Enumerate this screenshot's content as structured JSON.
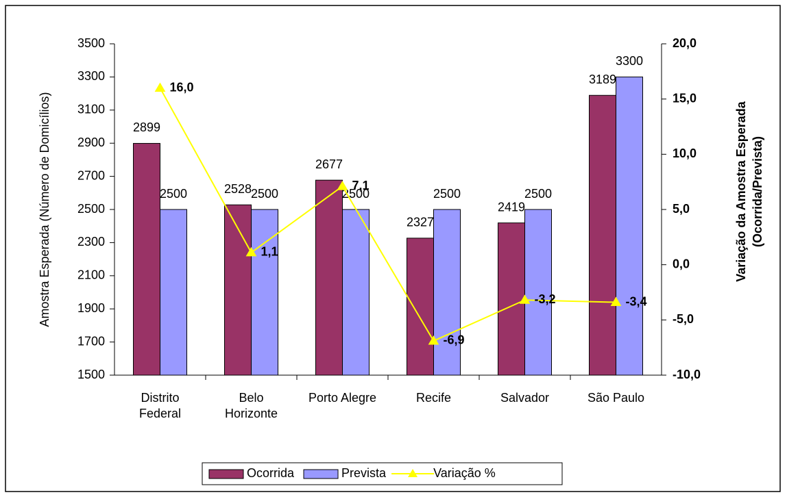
{
  "chart_data": {
    "type": "bar-line",
    "categories": [
      "Distrito Federal",
      "Belo Horizonte",
      "Porto Alegre",
      "Recife",
      "Salvador",
      "São Paulo"
    ],
    "series": [
      {
        "name": "Ocorrida",
        "type": "bar",
        "color": "#993366",
        "values": [
          2899,
          2528,
          2677,
          2327,
          2419,
          3189
        ]
      },
      {
        "name": "Prevista",
        "type": "bar",
        "color": "#9999ff",
        "values": [
          2500,
          2500,
          2500,
          2500,
          2500,
          3300
        ]
      },
      {
        "name": "Variação %",
        "type": "line",
        "axis": "y2",
        "color": "#ffff00",
        "values": [
          16.0,
          1.1,
          7.1,
          -6.9,
          -3.2,
          -3.4
        ],
        "value_labels": [
          "16,0",
          "1,1",
          "7,1",
          "-6,9",
          "-3,2",
          "-3,4"
        ]
      }
    ],
    "ylabel": "Amostra Esperada (Número de Domicílios)",
    "y2label": [
      "Variação da Amostra Esperada",
      "(Ocorrida/Prevista)"
    ],
    "ylim": [
      1500,
      3500
    ],
    "yticks": [
      1500,
      1700,
      1900,
      2100,
      2300,
      2500,
      2700,
      2900,
      3100,
      3300,
      3500
    ],
    "y2lim": [
      -10,
      20
    ],
    "y2ticks": [
      {
        "value": -10,
        "label": "-10,0"
      },
      {
        "value": -5,
        "label": "-5,0"
      },
      {
        "value": 0,
        "label": "0,0"
      },
      {
        "value": 5,
        "label": "5,0"
      },
      {
        "value": 10,
        "label": "10,0"
      },
      {
        "value": 15,
        "label": "15,0"
      },
      {
        "value": 20,
        "label": "20,0"
      }
    ],
    "legend": "bottom"
  }
}
